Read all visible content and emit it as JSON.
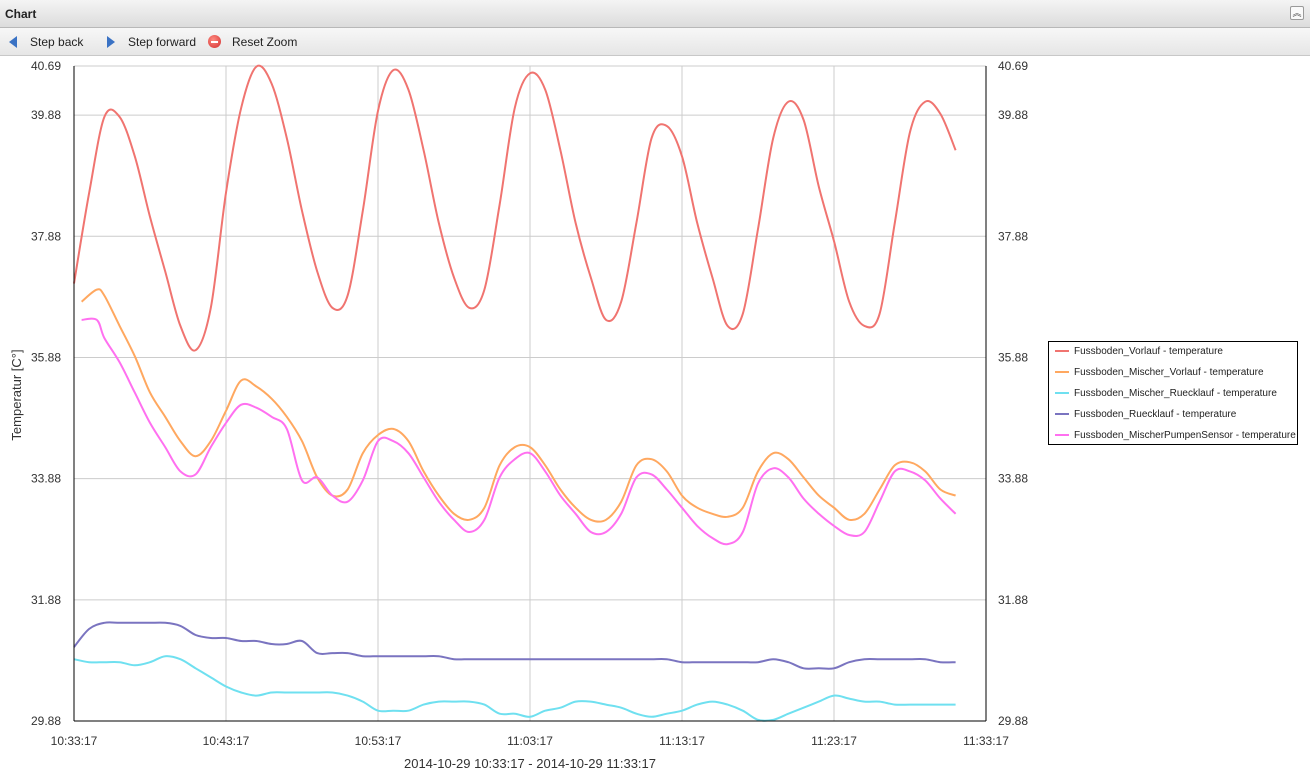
{
  "panel": {
    "title": "Chart",
    "collapse_icon": "double-chevron-up-icon"
  },
  "toolbar": {
    "step_back": "Step back",
    "step_forward": "Step forward",
    "reset_zoom": "Reset Zoom"
  },
  "chart_data": {
    "type": "line",
    "xlabel": "2014-10-29 10:33:17 - 2014-10-29 11:33:17",
    "ylabel": "Temperatur [C°]",
    "xlim": [
      0,
      60
    ],
    "ylim": [
      29.88,
      40.69
    ],
    "x_ticks": [
      {
        "value": 0,
        "label": "10:33:17"
      },
      {
        "value": 10,
        "label": "10:43:17"
      },
      {
        "value": 20,
        "label": "10:53:17"
      },
      {
        "value": 30,
        "label": "11:03:17"
      },
      {
        "value": 40,
        "label": "11:13:17"
      },
      {
        "value": 50,
        "label": "11:23:17"
      },
      {
        "value": 60,
        "label": "11:33:17"
      }
    ],
    "y_ticks": [
      {
        "value": 29.88,
        "label": "29.88"
      },
      {
        "value": 31.88,
        "label": "31.88"
      },
      {
        "value": 33.88,
        "label": "33.88"
      },
      {
        "value": 35.88,
        "label": "35.88"
      },
      {
        "value": 37.88,
        "label": "37.88"
      },
      {
        "value": 39.88,
        "label": "39.88"
      },
      {
        "value": 40.69,
        "label": "40.69"
      }
    ],
    "grid": true,
    "legend_position": "right",
    "series": [
      {
        "name": "Fussboden_Vorlauf - temperature",
        "color": "#f07470",
        "points": [
          [
            0,
            37.1
          ],
          [
            1,
            38.6
          ],
          [
            2,
            39.85
          ],
          [
            3,
            39.85
          ],
          [
            4,
            39.2
          ],
          [
            5,
            38.2
          ],
          [
            6,
            37.3
          ],
          [
            7,
            36.4
          ],
          [
            8,
            36.0
          ],
          [
            9,
            36.7
          ],
          [
            10,
            38.6
          ],
          [
            11,
            40.0
          ],
          [
            12,
            40.68
          ],
          [
            13,
            40.4
          ],
          [
            14,
            39.5
          ],
          [
            15,
            38.3
          ],
          [
            16,
            37.3
          ],
          [
            17,
            36.7
          ],
          [
            18,
            36.9
          ],
          [
            19,
            38.3
          ],
          [
            20,
            39.95
          ],
          [
            21,
            40.62
          ],
          [
            22,
            40.3
          ],
          [
            23,
            39.3
          ],
          [
            24,
            38.1
          ],
          [
            25,
            37.2
          ],
          [
            26,
            36.7
          ],
          [
            27,
            37.0
          ],
          [
            28,
            38.4
          ],
          [
            29,
            40.0
          ],
          [
            30,
            40.57
          ],
          [
            31,
            40.3
          ],
          [
            32,
            39.3
          ],
          [
            33,
            38.1
          ],
          [
            34,
            37.2
          ],
          [
            35,
            36.5
          ],
          [
            36,
            36.8
          ],
          [
            37,
            38.1
          ],
          [
            38,
            39.5
          ],
          [
            39,
            39.7
          ],
          [
            40,
            39.2
          ],
          [
            41,
            38.1
          ],
          [
            42,
            37.2
          ],
          [
            43,
            36.4
          ],
          [
            44,
            36.6
          ],
          [
            45,
            38.0
          ],
          [
            46,
            39.5
          ],
          [
            47,
            40.1
          ],
          [
            48,
            39.8
          ],
          [
            49,
            38.7
          ],
          [
            50,
            37.8
          ],
          [
            51,
            36.8
          ],
          [
            52,
            36.4
          ],
          [
            53,
            36.6
          ],
          [
            54,
            38.1
          ],
          [
            55,
            39.6
          ],
          [
            56,
            40.1
          ],
          [
            57,
            39.9
          ],
          [
            58,
            39.3
          ]
        ]
      },
      {
        "name": "Fussboden_Mischer_Vorlauf - temperature",
        "color": "#ffa860",
        "points": [
          [
            0.5,
            36.8
          ],
          [
            1.5,
            37.0
          ],
          [
            2,
            36.9
          ],
          [
            3,
            36.4
          ],
          [
            4,
            35.9
          ],
          [
            5,
            35.3
          ],
          [
            6,
            34.9
          ],
          [
            7,
            34.5
          ],
          [
            8,
            34.25
          ],
          [
            9,
            34.5
          ],
          [
            10,
            35.0
          ],
          [
            11,
            35.5
          ],
          [
            12,
            35.4
          ],
          [
            13,
            35.2
          ],
          [
            14,
            34.9
          ],
          [
            15,
            34.5
          ],
          [
            16,
            33.9
          ],
          [
            17,
            33.6
          ],
          [
            18,
            33.7
          ],
          [
            19,
            34.3
          ],
          [
            20,
            34.6
          ],
          [
            21,
            34.7
          ],
          [
            22,
            34.5
          ],
          [
            23,
            34.0
          ],
          [
            24,
            33.6
          ],
          [
            25,
            33.3
          ],
          [
            26,
            33.2
          ],
          [
            27,
            33.4
          ],
          [
            28,
            34.1
          ],
          [
            29,
            34.4
          ],
          [
            30,
            34.4
          ],
          [
            31,
            34.1
          ],
          [
            32,
            33.7
          ],
          [
            33,
            33.4
          ],
          [
            34,
            33.2
          ],
          [
            35,
            33.2
          ],
          [
            36,
            33.5
          ],
          [
            37,
            34.1
          ],
          [
            38,
            34.2
          ],
          [
            39,
            34.0
          ],
          [
            40,
            33.6
          ],
          [
            41,
            33.4
          ],
          [
            42,
            33.3
          ],
          [
            43,
            33.25
          ],
          [
            44,
            33.4
          ],
          [
            45,
            34.0
          ],
          [
            46,
            34.3
          ],
          [
            47,
            34.2
          ],
          [
            48,
            33.9
          ],
          [
            49,
            33.6
          ],
          [
            50,
            33.4
          ],
          [
            51,
            33.2
          ],
          [
            52,
            33.3
          ],
          [
            53,
            33.7
          ],
          [
            54,
            34.1
          ],
          [
            55,
            34.15
          ],
          [
            56,
            34.0
          ],
          [
            57,
            33.7
          ],
          [
            58,
            33.6
          ]
        ]
      },
      {
        "name": "Fussboden_Mischer_Ruecklauf - temperature",
        "color": "#6fe0f0",
        "points": [
          [
            0,
            30.9
          ],
          [
            1,
            30.85
          ],
          [
            2,
            30.85
          ],
          [
            3,
            30.85
          ],
          [
            4,
            30.8
          ],
          [
            5,
            30.85
          ],
          [
            6,
            30.95
          ],
          [
            7,
            30.9
          ],
          [
            8,
            30.75
          ],
          [
            9,
            30.6
          ],
          [
            10,
            30.45
          ],
          [
            11,
            30.35
          ],
          [
            12,
            30.3
          ],
          [
            13,
            30.35
          ],
          [
            14,
            30.35
          ],
          [
            15,
            30.35
          ],
          [
            16,
            30.35
          ],
          [
            17,
            30.35
          ],
          [
            18,
            30.3
          ],
          [
            19,
            30.2
          ],
          [
            20,
            30.05
          ],
          [
            21,
            30.05
          ],
          [
            22,
            30.05
          ],
          [
            23,
            30.15
          ],
          [
            24,
            30.2
          ],
          [
            25,
            30.2
          ],
          [
            26,
            30.2
          ],
          [
            27,
            30.15
          ],
          [
            28,
            30.0
          ],
          [
            29,
            30.0
          ],
          [
            30,
            29.95
          ],
          [
            31,
            30.05
          ],
          [
            32,
            30.1
          ],
          [
            33,
            30.2
          ],
          [
            34,
            30.2
          ],
          [
            35,
            30.15
          ],
          [
            36,
            30.1
          ],
          [
            37,
            30.0
          ],
          [
            38,
            29.95
          ],
          [
            39,
            30.0
          ],
          [
            40,
            30.05
          ],
          [
            41,
            30.15
          ],
          [
            42,
            30.2
          ],
          [
            43,
            30.15
          ],
          [
            44,
            30.05
          ],
          [
            45,
            29.9
          ],
          [
            46,
            29.9
          ],
          [
            47,
            30.0
          ],
          [
            48,
            30.1
          ],
          [
            49,
            30.2
          ],
          [
            50,
            30.3
          ],
          [
            51,
            30.25
          ],
          [
            52,
            30.2
          ],
          [
            53,
            30.2
          ],
          [
            54,
            30.15
          ],
          [
            55,
            30.15
          ],
          [
            56,
            30.15
          ],
          [
            57,
            30.15
          ],
          [
            58,
            30.15
          ]
        ]
      },
      {
        "name": "Fussboden_Ruecklauf - temperature",
        "color": "#7a74c0",
        "points": [
          [
            0,
            31.1
          ],
          [
            1,
            31.4
          ],
          [
            2,
            31.5
          ],
          [
            3,
            31.5
          ],
          [
            4,
            31.5
          ],
          [
            5,
            31.5
          ],
          [
            6,
            31.5
          ],
          [
            7,
            31.45
          ],
          [
            8,
            31.3
          ],
          [
            9,
            31.25
          ],
          [
            10,
            31.25
          ],
          [
            11,
            31.2
          ],
          [
            12,
            31.2
          ],
          [
            13,
            31.15
          ],
          [
            14,
            31.15
          ],
          [
            15,
            31.2
          ],
          [
            16,
            31.0
          ],
          [
            17,
            31.0
          ],
          [
            18,
            31.0
          ],
          [
            19,
            30.95
          ],
          [
            20,
            30.95
          ],
          [
            21,
            30.95
          ],
          [
            22,
            30.95
          ],
          [
            23,
            30.95
          ],
          [
            24,
            30.95
          ],
          [
            25,
            30.9
          ],
          [
            26,
            30.9
          ],
          [
            27,
            30.9
          ],
          [
            28,
            30.9
          ],
          [
            29,
            30.9
          ],
          [
            30,
            30.9
          ],
          [
            31,
            30.9
          ],
          [
            32,
            30.9
          ],
          [
            33,
            30.9
          ],
          [
            34,
            30.9
          ],
          [
            35,
            30.9
          ],
          [
            36,
            30.9
          ],
          [
            37,
            30.9
          ],
          [
            38,
            30.9
          ],
          [
            39,
            30.9
          ],
          [
            40,
            30.85
          ],
          [
            41,
            30.85
          ],
          [
            42,
            30.85
          ],
          [
            43,
            30.85
          ],
          [
            44,
            30.85
          ],
          [
            45,
            30.85
          ],
          [
            46,
            30.9
          ],
          [
            47,
            30.85
          ],
          [
            48,
            30.75
          ],
          [
            49,
            30.75
          ],
          [
            50,
            30.75
          ],
          [
            51,
            30.85
          ],
          [
            52,
            30.9
          ],
          [
            53,
            30.9
          ],
          [
            54,
            30.9
          ],
          [
            55,
            30.9
          ],
          [
            56,
            30.9
          ],
          [
            57,
            30.85
          ],
          [
            58,
            30.85
          ]
        ]
      },
      {
        "name": "Fussboden_MischerPumpenSensor - temperature",
        "color": "#ff70f0",
        "points": [
          [
            0.5,
            36.5
          ],
          [
            1.5,
            36.5
          ],
          [
            2,
            36.2
          ],
          [
            3,
            35.8
          ],
          [
            4,
            35.3
          ],
          [
            5,
            34.8
          ],
          [
            6,
            34.4
          ],
          [
            7,
            34.0
          ],
          [
            8,
            33.95
          ],
          [
            9,
            34.4
          ],
          [
            10,
            34.8
          ],
          [
            11,
            35.1
          ],
          [
            12,
            35.05
          ],
          [
            13,
            34.9
          ],
          [
            14,
            34.7
          ],
          [
            15,
            33.85
          ],
          [
            16,
            33.9
          ],
          [
            17,
            33.6
          ],
          [
            18,
            33.5
          ],
          [
            19,
            33.85
          ],
          [
            20,
            34.5
          ],
          [
            21,
            34.5
          ],
          [
            22,
            34.3
          ],
          [
            23,
            33.9
          ],
          [
            24,
            33.5
          ],
          [
            25,
            33.2
          ],
          [
            26,
            33.0
          ],
          [
            27,
            33.2
          ],
          [
            28,
            33.9
          ],
          [
            29,
            34.2
          ],
          [
            30,
            34.3
          ],
          [
            31,
            34.0
          ],
          [
            32,
            33.6
          ],
          [
            33,
            33.3
          ],
          [
            34,
            33.0
          ],
          [
            35,
            33.0
          ],
          [
            36,
            33.3
          ],
          [
            37,
            33.9
          ],
          [
            38,
            33.95
          ],
          [
            39,
            33.7
          ],
          [
            40,
            33.4
          ],
          [
            41,
            33.1
          ],
          [
            42,
            32.9
          ],
          [
            43,
            32.8
          ],
          [
            44,
            33.0
          ],
          [
            45,
            33.8
          ],
          [
            46,
            34.05
          ],
          [
            47,
            33.9
          ],
          [
            48,
            33.55
          ],
          [
            49,
            33.3
          ],
          [
            50,
            33.1
          ],
          [
            51,
            32.95
          ],
          [
            52,
            33.0
          ],
          [
            53,
            33.5
          ],
          [
            54,
            34.0
          ],
          [
            55,
            34.0
          ],
          [
            56,
            33.85
          ],
          [
            57,
            33.55
          ],
          [
            58,
            33.3
          ]
        ]
      }
    ]
  }
}
